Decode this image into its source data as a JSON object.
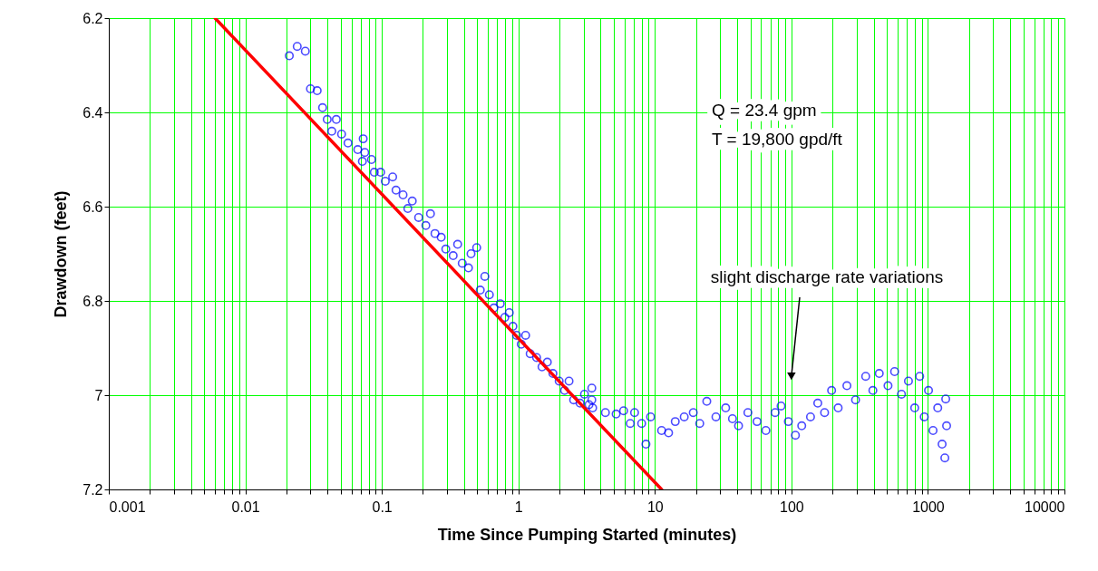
{
  "chart_data": {
    "type": "scatter",
    "xlabel": "Time Since Pumping Started (minutes)",
    "ylabel": "Drawdown (feet)",
    "log": "x",
    "grid": true,
    "xlim": [
      0.001,
      10000
    ],
    "ylim": [
      7.2,
      6.2
    ],
    "xticks": [
      0.001,
      {
        "value": 0.002,
        "label": null
      },
      {
        "value": 0.003,
        "label": null
      },
      {
        "value": 0.004,
        "label": null
      },
      {
        "value": 0.005,
        "label": null
      },
      {
        "value": 0.006,
        "label": null
      },
      {
        "value": 0.007,
        "label": null
      },
      {
        "value": 0.008,
        "label": null
      },
      {
        "value": 0.009,
        "label": null
      },
      0.01,
      {
        "value": 0.02,
        "label": null
      },
      {
        "value": 0.03,
        "label": null
      },
      {
        "value": 0.04,
        "label": null
      },
      {
        "value": 0.05,
        "label": null
      },
      {
        "value": 0.06,
        "label": null
      },
      {
        "value": 0.07,
        "label": null
      },
      {
        "value": 0.08,
        "label": null
      },
      {
        "value": 0.09,
        "label": null
      },
      0.1,
      {
        "value": 0.2,
        "label": null
      },
      {
        "value": 0.3,
        "label": null
      },
      {
        "value": 0.4,
        "label": null
      },
      {
        "value": 0.5,
        "label": null
      },
      {
        "value": 0.6,
        "label": null
      },
      {
        "value": 0.7,
        "label": null
      },
      {
        "value": 0.8,
        "label": null
      },
      {
        "value": 0.9,
        "label": null
      },
      1,
      {
        "value": 2,
        "label": null
      },
      {
        "value": 3,
        "label": null
      },
      {
        "value": 4,
        "label": null
      },
      {
        "value": 5,
        "label": null
      },
      {
        "value": 6,
        "label": null
      },
      {
        "value": 7,
        "label": null
      },
      {
        "value": 8,
        "label": null
      },
      {
        "value": 9,
        "label": null
      },
      10,
      {
        "value": 20,
        "label": null
      },
      {
        "value": 30,
        "label": null
      },
      {
        "value": 40,
        "label": null
      },
      {
        "value": 50,
        "label": null
      },
      {
        "value": 60,
        "label": null
      },
      {
        "value": 70,
        "label": null
      },
      {
        "value": 80,
        "label": null
      },
      {
        "value": 90,
        "label": null
      },
      100,
      {
        "value": 200,
        "label": null
      },
      {
        "value": 300,
        "label": null
      },
      {
        "value": 400,
        "label": null
      },
      {
        "value": 500,
        "label": null
      },
      {
        "value": 600,
        "label": null
      },
      {
        "value": 700,
        "label": null
      },
      {
        "value": 800,
        "label": null
      },
      {
        "value": 900,
        "label": null
      },
      1000,
      {
        "value": 2000,
        "label": null
      },
      {
        "value": 3000,
        "label": null
      },
      {
        "value": 4000,
        "label": null
      },
      {
        "value": 5000,
        "label": null
      },
      {
        "value": 6000,
        "label": null
      },
      {
        "value": 7000,
        "label": null
      },
      {
        "value": 8000,
        "label": null
      },
      {
        "value": 9000,
        "label": null
      },
      10000
    ],
    "yticks": [
      6.2,
      6.4,
      6.6,
      6.8,
      {
        "value": 7,
        "label": "7"
      },
      7.2
    ],
    "annotations": [
      "Q = 23.4 gpm",
      "T = 19,800 gpd/ft",
      {
        "text": "slight discharge rate variations",
        "x": 100,
        "y": 6.96
      }
    ],
    "series": [
      {
        "color": "#0000ff",
        "marker": "circle",
        "x": [
          0.021,
          0.024,
          0.0275,
          0.03,
          0.0336,
          0.0368,
          0.0398,
          0.0464,
          0.043,
          0.0507,
          0.0565,
          0.0666,
          0.072,
          0.073,
          0.075,
          0.084,
          0.088,
          0.098,
          0.106,
          0.12,
          0.127,
          0.143,
          0.155,
          0.167,
          0.186,
          0.21,
          0.227,
          0.245,
          0.272,
          0.294,
          0.333,
          0.359,
          0.388,
          0.431,
          0.45,
          0.495,
          0.526,
          0.568,
          0.613,
          0.662,
          0.737,
          0.795,
          0.858,
          0.912,
          0.97,
          1.05,
          1.13,
          1.22,
          1.36,
          1.49,
          1.63,
          1.79,
          1.99,
          2.18,
          2.35,
          2.54,
          2.83,
          3.05,
          3.29,
          3.45,
          3.45,
          3.5,
          4.34,
          5.2,
          5.9,
          6.6,
          7.1,
          8.0,
          8.6,
          9.3,
          11.2,
          12.6,
          14.1,
          16.4,
          19.1,
          21.3,
          24,
          28,
          33,
          37,
          41,
          48,
          56,
          65,
          76,
          84,
          95,
          107,
          119,
          138,
          156,
          175,
          197,
          220,
          255,
          295,
          350,
          395,
          440,
          510,
          570,
          640,
          720,
          800,
          870,
          940,
          1010,
          1090,
          1180,
          1270,
          1330,
          1350,
          1370
        ],
        "values": [
          6.28,
          6.26,
          6.27,
          6.35,
          6.354,
          6.39,
          6.415,
          6.415,
          6.44,
          6.446,
          6.465,
          6.479,
          6.504,
          6.456,
          6.485,
          6.5,
          6.527,
          6.527,
          6.546,
          6.537,
          6.565,
          6.575,
          6.604,
          6.588,
          6.623,
          6.64,
          6.615,
          6.657,
          6.665,
          6.69,
          6.704,
          6.68,
          6.72,
          6.73,
          6.7,
          6.687,
          6.777,
          6.748,
          6.787,
          6.815,
          6.806,
          6.835,
          6.825,
          6.854,
          6.873,
          6.892,
          6.873,
          6.912,
          6.92,
          6.94,
          6.93,
          6.954,
          6.97,
          6.99,
          6.97,
          7.01,
          7.017,
          6.998,
          7.02,
          7.01,
          6.985,
          7.027,
          7.037,
          7.04,
          7.033,
          7.06,
          7.037,
          7.06,
          7.104,
          7.046,
          7.075,
          7.08,
          7.056,
          7.046,
          7.037,
          7.06,
          7.013,
          7.046,
          7.027,
          7.05,
          7.065,
          7.037,
          7.056,
          7.075,
          7.037,
          7.023,
          7.056,
          7.085,
          7.065,
          7.046,
          7.017,
          7.037,
          6.99,
          7.027,
          6.98,
          7.01,
          6.96,
          6.99,
          6.954,
          6.98,
          6.95,
          6.998,
          6.97,
          7.027,
          6.96,
          7.046,
          6.99,
          7.075,
          7.027,
          7.104,
          7.133,
          7.008,
          7.065
        ]
      },
      {
        "type": "line",
        "color": "#ff0000",
        "x": [
          0.006,
          11.2
        ],
        "values": [
          6.2,
          7.2
        ]
      }
    ]
  }
}
